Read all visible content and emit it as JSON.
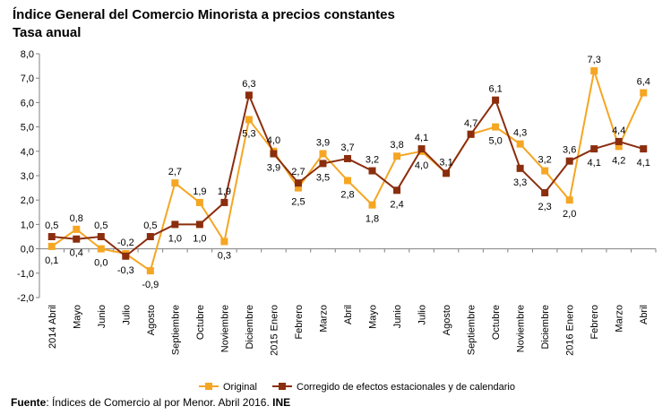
{
  "title": "Índice General del Comercio Minorista a precios constantes",
  "subtitle": "Tasa anual",
  "source": {
    "label": "Fuente",
    "text": "Índices de Comercio al por Menor. Abril 2016.",
    "org": "INE"
  },
  "colors": {
    "original": "#F5A623",
    "corregido": "#8B2E0E",
    "axis": "#808080",
    "text": "#000000"
  },
  "chart_data": {
    "type": "line",
    "categories": [
      "2014 Abril",
      "Mayo",
      "Junio",
      "Julio",
      "Agosto",
      "Septiembre",
      "Octubre",
      "Noviembre",
      "Diciembre",
      "2015 Enero",
      "Febrero",
      "Marzo",
      "Abril",
      "Mayo",
      "Junio",
      "Julio",
      "Agosto",
      "Septiembre",
      "Octubre",
      "Noviembre",
      "Diciembre",
      "2016 Enero",
      "Febrero",
      "Marzo",
      "Abril"
    ],
    "ylim": [
      -2.0,
      8.0
    ],
    "yticks": [
      "-2,0",
      "-1,0",
      "0,0",
      "1,0",
      "2,0",
      "3,0",
      "4,0",
      "5,0",
      "6,0",
      "7,0",
      "8,0"
    ],
    "grid": false,
    "legend": "bottom",
    "series": [
      {
        "name": "Original",
        "color": "#F5A623",
        "marker": "square",
        "values": [
          0.1,
          0.8,
          0.0,
          -0.2,
          -0.9,
          2.7,
          1.9,
          0.3,
          5.3,
          4.0,
          2.5,
          3.9,
          2.8,
          1.8,
          3.8,
          4.0,
          3.1,
          4.7,
          5.0,
          4.3,
          3.2,
          2.0,
          7.3,
          4.2,
          6.4
        ],
        "labels": [
          "0,1",
          "0,8",
          "0,0",
          "-0,2",
          "-0,9",
          "2,7",
          "1,9",
          "0,3",
          "5,3",
          "4,0",
          "2,5",
          "3,9",
          "2,8",
          "1,8",
          "3,8",
          "4,0",
          "3,1",
          "4,7",
          "5,0",
          "4,3",
          "3,2",
          "2,0",
          "7,3",
          "4,2",
          "6,4"
        ]
      },
      {
        "name": "Corregido de efectos estacionales y de calendario",
        "color": "#8B2E0E",
        "marker": "square",
        "values": [
          0.5,
          0.4,
          0.5,
          -0.3,
          0.5,
          1.0,
          1.0,
          1.9,
          6.3,
          3.9,
          2.7,
          3.5,
          3.7,
          3.2,
          2.4,
          4.1,
          3.1,
          4.7,
          6.1,
          3.3,
          2.3,
          3.6,
          4.1,
          4.4,
          4.1
        ],
        "labels": [
          "0,5",
          "0,4",
          "0,5",
          "-0,3",
          "0,5",
          "1,0",
          "1,0",
          "1,9",
          "6,3",
          "3,9",
          "2,7",
          "3,5",
          "3,7",
          "3,2",
          "2,4",
          "4,1",
          "3,1",
          "4,7",
          "6,1",
          "3,3",
          "2,3",
          "3,6",
          "4,1",
          "4,4",
          "4,1"
        ]
      }
    ],
    "label_positions": {
      "Original": [
        "below",
        "above",
        "below",
        "above",
        "below",
        "above",
        "above",
        "below",
        "below",
        "above",
        "below",
        "above",
        "below",
        "below",
        "above",
        "below",
        "none",
        "above",
        "below",
        "above",
        "above",
        "below",
        "above",
        "below",
        "above"
      ],
      "Corregido de efectos estacionales y de calendario": [
        "above",
        "below",
        "above",
        "below",
        "above",
        "below",
        "below",
        "above",
        "above",
        "below",
        "above",
        "below",
        "above",
        "above",
        "below",
        "above",
        "above",
        "none",
        "above",
        "below",
        "below",
        "above",
        "below",
        "above",
        "below"
      ]
    }
  }
}
